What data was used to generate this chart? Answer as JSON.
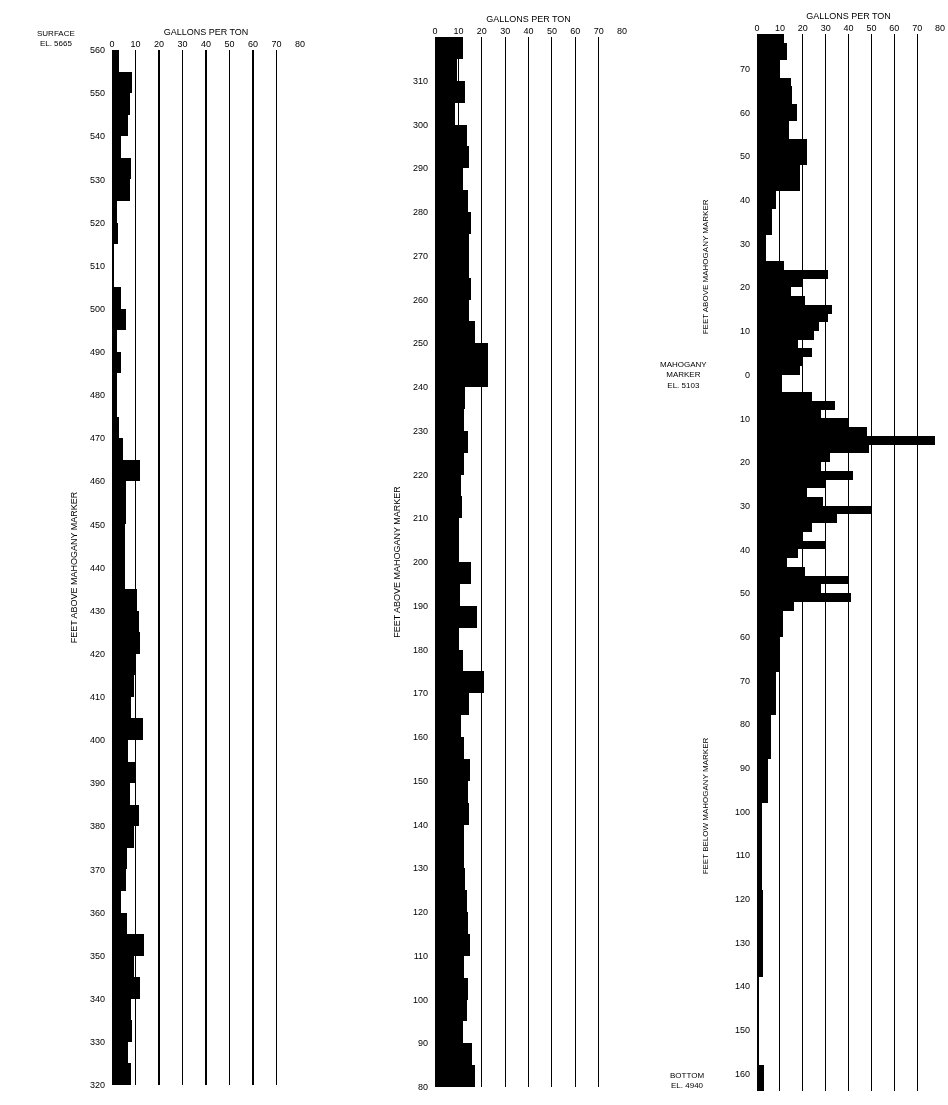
{
  "chart_data": [
    {
      "type": "bar",
      "orientation": "horizontal",
      "xlabel": "GALLONS PER TON",
      "ylabel": "FEET ABOVE MAHOGANY MARKER",
      "annotations": [
        "SURFACE\nEL. 5665"
      ],
      "x": [
        557.5,
        552.5,
        547.5,
        542.5,
        537.5,
        532.5,
        527.5,
        522.5,
        517.5,
        512.5,
        507.5,
        502.5,
        497.5,
        492.5,
        487.5,
        482.5,
        477.5,
        472.5,
        467.5,
        462.5,
        457.5,
        452.5,
        447.5,
        442.5,
        437.5,
        432.5,
        427.5,
        422.5,
        417.5,
        412.5,
        407.5,
        402.5,
        397.5,
        392.5,
        387.5,
        382.5,
        377.5,
        372.5,
        367.5,
        362.5,
        357.5,
        352.5,
        347.5,
        342.5,
        337.5,
        332.5,
        327.5,
        322.5
      ],
      "series": [
        {
          "color": "#000000",
          "values": [
            3,
            8.5,
            7.5,
            7,
            4,
            8,
            7.5,
            2,
            2.5,
            1,
            1,
            4,
            6,
            2,
            4,
            2,
            2,
            3,
            4.5,
            12,
            6,
            6,
            5.5,
            5.5,
            5.5,
            10.5,
            11.5,
            12,
            10,
            9.5,
            8,
            13,
            7,
            10,
            7.5,
            11.5,
            9.5,
            6.5,
            6,
            4,
            6.5,
            13.5,
            9.5,
            12,
            8,
            8.5,
            7,
            8
          ]
        }
      ],
      "xlim": [
        0,
        80
      ],
      "xticks": [
        0,
        10,
        20,
        30,
        40,
        50,
        60,
        70,
        80
      ],
      "ylim": [
        320,
        560
      ],
      "yticks": [
        320,
        330,
        340,
        350,
        360,
        370,
        380,
        390,
        400,
        410,
        420,
        430,
        440,
        450,
        460,
        470,
        480,
        490,
        500,
        510,
        520,
        530,
        540,
        550,
        560
      ],
      "grid": "x"
    },
    {
      "type": "bar",
      "orientation": "horizontal",
      "xlabel": "GALLONS PER TON",
      "ylabel": "FEET ABOVE MAHOGANY MARKER",
      "x": [
        317.5,
        312.5,
        307.5,
        302.5,
        297.5,
        292.5,
        287.5,
        282.5,
        277.5,
        272.5,
        267.5,
        262.5,
        257.5,
        252.5,
        247.5,
        242.5,
        237.5,
        232.5,
        227.5,
        222.5,
        217.5,
        212.5,
        207.5,
        202.5,
        197.5,
        192.5,
        187.5,
        182.5,
        177.5,
        172.5,
        167.5,
        162.5,
        157.5,
        152.5,
        147.5,
        142.5,
        137.5,
        132.5,
        127.5,
        122.5,
        117.5,
        112.5,
        107.5,
        102.5,
        97.5,
        92.5,
        87.5,
        82.5
      ],
      "series": [
        {
          "color": "#000000",
          "values": [
            12,
            9.5,
            13,
            8.5,
            13.5,
            14.5,
            12,
            14,
            15.5,
            14.5,
            14.5,
            15.5,
            14.5,
            17,
            22.5,
            22.5,
            13,
            12.5,
            14,
            12.5,
            11,
            11.5,
            10,
            10,
            15.5,
            10.5,
            18,
            10,
            12,
            21,
            14.5,
            11,
            12.5,
            15,
            14,
            14.5,
            12.5,
            12.5,
            13,
            13.5,
            14,
            15,
            12.5,
            14,
            13.5,
            12,
            16,
            17
          ]
        }
      ],
      "xlim": [
        0,
        80
      ],
      "xticks": [
        0,
        10,
        20,
        30,
        40,
        50,
        60,
        70,
        80
      ],
      "ylim": [
        80,
        320
      ],
      "yticks": [
        80,
        90,
        100,
        110,
        120,
        130,
        140,
        150,
        160,
        170,
        180,
        190,
        200,
        210,
        220,
        230,
        240,
        250,
        260,
        270,
        280,
        290,
        300,
        310
      ],
      "grid": "x"
    },
    {
      "type": "bar",
      "orientation": "horizontal",
      "xlabel": "GALLONS PER TON",
      "annotations": [
        "FEET ABOVE MAHOGANY MARKER",
        "MAHOGANY\nMARKER\nEL. 5103",
        "FEET BELOW MAHOGANY MARKER",
        "BOTTOM\nEL. 4940"
      ],
      "x": [
        77,
        75,
        73,
        71,
        69,
        67,
        65,
        63,
        61,
        59,
        57,
        55,
        53,
        51,
        49,
        47,
        45,
        43,
        41,
        39,
        37,
        35,
        33,
        31,
        29,
        27,
        25,
        23,
        21,
        19,
        17,
        15,
        13,
        11,
        9,
        7,
        5,
        3,
        1,
        -1,
        -3,
        -5,
        -7,
        -9,
        -11,
        -13,
        -15,
        -17,
        -19,
        -21,
        -23,
        -25,
        -27,
        -29,
        -31,
        -33,
        -35,
        -37,
        -39,
        -41,
        -43,
        -45,
        -47,
        -49,
        -51,
        -53,
        -55,
        -57,
        -59,
        -61,
        -63,
        -65,
        -67,
        -69,
        -71,
        -73,
        -75,
        -77,
        -79,
        -81,
        -83,
        -85,
        -87,
        -89,
        -91,
        -93,
        -95,
        -97,
        -99,
        -101,
        -103,
        -105,
        -107,
        -109,
        -111,
        -113,
        -115,
        -117,
        -119,
        -121,
        -123,
        -125,
        -127,
        -129,
        -131,
        -133,
        -135,
        -137,
        -139,
        -141,
        -143,
        -145,
        -147,
        -149,
        -151,
        -153,
        -155,
        -157,
        -159,
        -161,
        -163
      ],
      "series": [
        {
          "color": "#000000",
          "values": [
            12,
            13,
            13,
            9.5,
            9.5,
            15,
            15.5,
            15.5,
            17.5,
            17.5,
            14,
            14,
            22,
            22,
            22,
            19,
            19,
            19,
            8.5,
            8.5,
            6.5,
            6.5,
            6.5,
            4,
            4,
            4,
            12,
            31,
            20,
            15,
            21,
            33,
            31,
            27,
            25,
            18,
            24,
            20,
            19,
            11,
            11,
            24,
            34,
            28,
            40,
            48,
            78,
            49,
            32,
            28,
            42,
            30,
            22,
            29,
            50,
            35,
            24,
            20,
            30,
            18,
            13,
            21,
            40,
            28,
            41,
            16,
            11.5,
            11.5,
            11.5,
            10,
            10,
            10,
            10,
            8.5,
            8.5,
            8.5,
            8.5,
            8.5,
            6,
            6,
            6,
            6,
            6,
            5,
            5,
            5,
            5,
            5,
            2,
            2,
            2,
            2,
            2,
            2,
            2,
            2,
            2,
            2,
            2.5,
            2.5,
            2.5,
            2.5,
            2.5,
            2.5,
            2.5,
            2.5,
            2.5,
            2.5,
            1,
            1,
            1,
            1,
            1,
            1,
            1,
            1,
            1,
            1,
            3,
            3,
            3
          ]
        }
      ],
      "xlim": [
        0,
        80
      ],
      "xticks": [
        0,
        10,
        20,
        30,
        40,
        50,
        60,
        70,
        80
      ],
      "ylim": [
        -164,
        78
      ],
      "yticks": [
        70,
        60,
        50,
        40,
        30,
        20,
        10,
        0,
        {
          "value": -10,
          "label": "10"
        },
        {
          "value": -20,
          "label": "20"
        },
        {
          "value": -30,
          "label": "30"
        },
        {
          "value": -40,
          "label": "40"
        },
        {
          "value": -50,
          "label": "50"
        },
        {
          "value": -60,
          "label": "60"
        },
        {
          "value": -70,
          "label": "70"
        },
        {
          "value": -80,
          "label": "80"
        },
        {
          "value": -90,
          "label": "90"
        },
        {
          "value": -100,
          "label": "100"
        },
        {
          "value": -110,
          "label": "110"
        },
        {
          "value": -120,
          "label": "120"
        },
        {
          "value": -130,
          "label": "130"
        },
        {
          "value": -140,
          "label": "140"
        },
        {
          "value": -150,
          "label": "150"
        },
        {
          "value": -160,
          "label": "160"
        }
      ],
      "grid": "x"
    }
  ]
}
